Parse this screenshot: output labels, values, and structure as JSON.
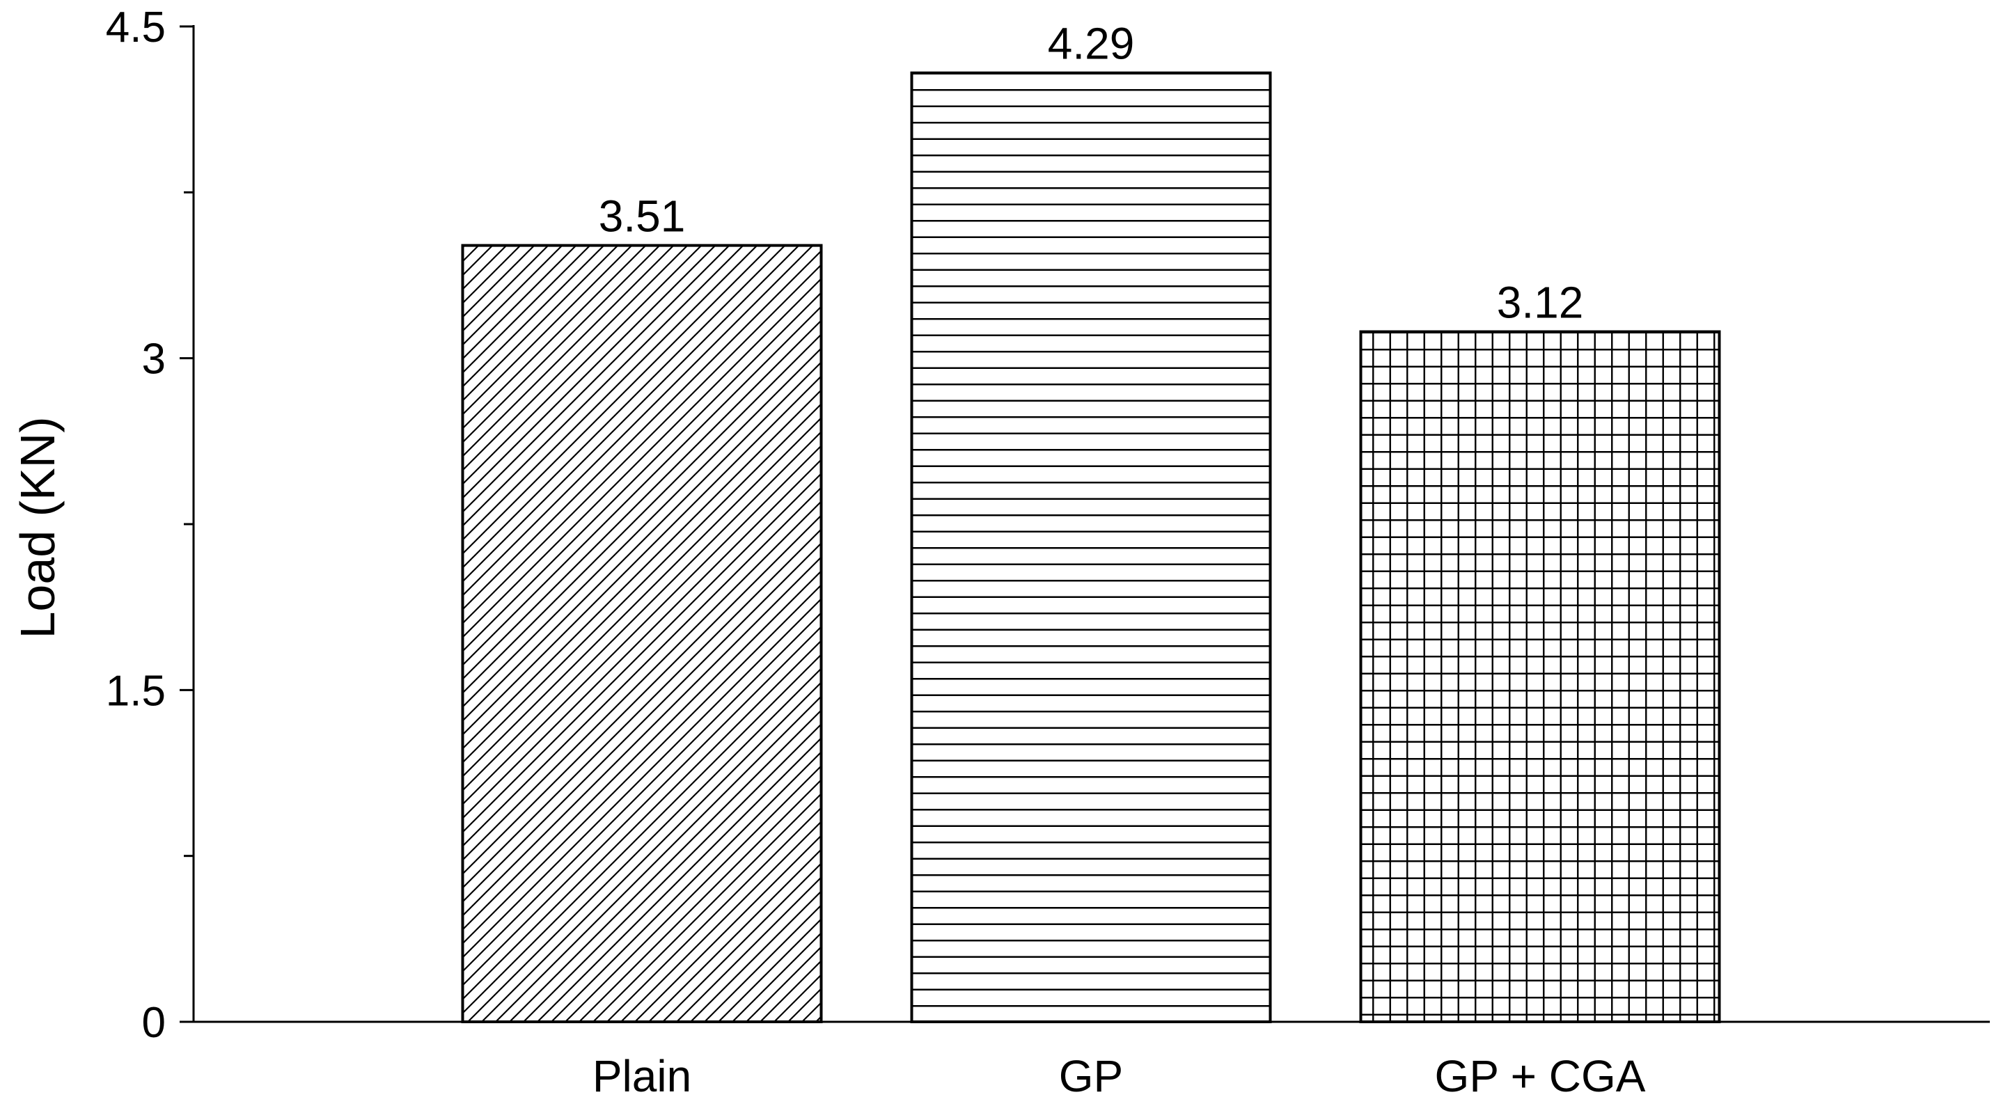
{
  "chart_data": {
    "type": "bar",
    "title": "",
    "xlabel": "",
    "ylabel": "Load (KN)",
    "ylim": [
      0,
      4.5
    ],
    "yticks": [
      0,
      1.5,
      3,
      4.5
    ],
    "ytick_labels": [
      "0",
      "1.5",
      "3",
      "4.5"
    ],
    "minor_yticks": [
      0.75,
      2.25,
      3.75
    ],
    "grid": false,
    "categories": [
      "Plain",
      "GP",
      "GP + CGA"
    ],
    "values": [
      3.51,
      4.29,
      3.12
    ],
    "data_labels": [
      "3.51",
      "4.29",
      "3.12"
    ],
    "bar_patterns": [
      "diagonal-hatch",
      "horizontal-lines",
      "grid-crosshatch"
    ],
    "colors": {
      "ink": "#000000",
      "background": "#ffffff"
    }
  }
}
